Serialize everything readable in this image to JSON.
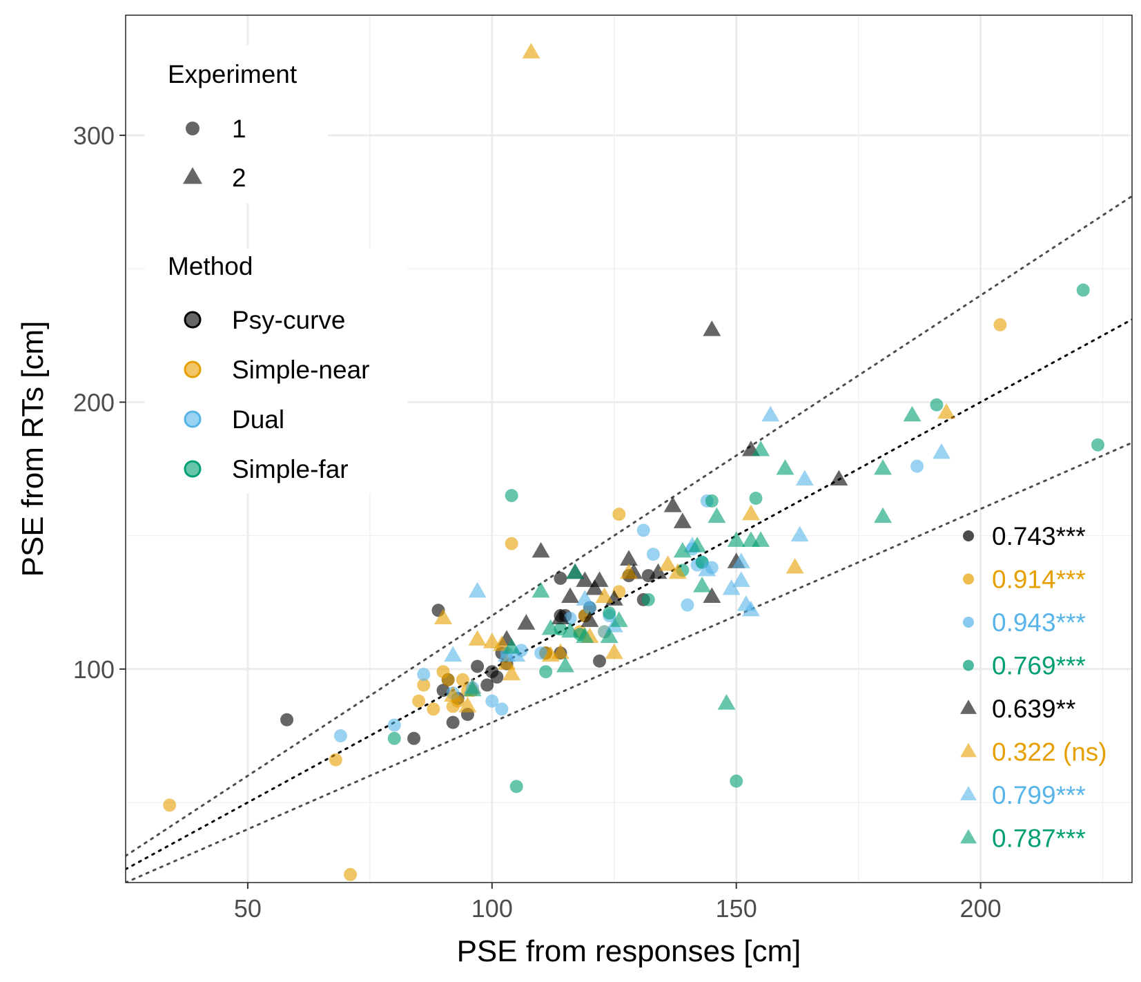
{
  "chart_data": {
    "type": "scatter",
    "xlabel": "PSE from responses [cm]",
    "ylabel": "PSE from RTs [cm]",
    "xlim": [
      25,
      231
    ],
    "ylim": [
      20,
      345
    ],
    "x_ticks": [
      50,
      100,
      150,
      200
    ],
    "y_ticks": [
      100,
      200,
      300
    ],
    "grid": true,
    "colors": {
      "Psy-curve": "#000000",
      "Simple-near": "#E69F00",
      "Dual": "#56B4E9",
      "Simple-far": "#009E73"
    },
    "legend_experiment": {
      "title": "Experiment",
      "items": [
        {
          "label": "1",
          "shape": "circle"
        },
        {
          "label": "2",
          "shape": "triangle"
        }
      ]
    },
    "legend_method": {
      "title": "Method",
      "items": [
        {
          "label": "Psy-curve",
          "method": "Psy-curve"
        },
        {
          "label": "Simple-near",
          "method": "Simple-near"
        },
        {
          "label": "Dual",
          "method": "Dual"
        },
        {
          "label": "Simple-far",
          "method": "Simple-far"
        }
      ]
    },
    "correlations": [
      {
        "experiment": "1",
        "method": "Psy-curve",
        "shape": "circle",
        "label": "0.743***"
      },
      {
        "experiment": "1",
        "method": "Simple-near",
        "shape": "circle",
        "label": "0.914***"
      },
      {
        "experiment": "1",
        "method": "Dual",
        "shape": "circle",
        "label": "0.943***"
      },
      {
        "experiment": "1",
        "method": "Simple-far",
        "shape": "circle",
        "label": "0.769***"
      },
      {
        "experiment": "2",
        "method": "Psy-curve",
        "shape": "triangle",
        "label": "0.639**"
      },
      {
        "experiment": "2",
        "method": "Simple-near",
        "shape": "triangle",
        "label": "0.322 (ns)"
      },
      {
        "experiment": "2",
        "method": "Dual",
        "shape": "triangle",
        "label": "0.799***"
      },
      {
        "experiment": "2",
        "method": "Simple-far",
        "shape": "triangle",
        "label": "0.787***"
      }
    ],
    "reference_lines": [
      {
        "slope": 1.0,
        "intercept": 0,
        "style": "dotted",
        "color": "#000000"
      },
      {
        "slope": 1.2,
        "intercept": 0,
        "style": "dotted",
        "color": "#4d4d4d"
      },
      {
        "slope": 0.8,
        "intercept": 0,
        "style": "dotted",
        "color": "#4d4d4d"
      }
    ],
    "series": [
      {
        "method": "Psy-curve",
        "experiment": "1",
        "shape": "circle",
        "points": [
          [
            58,
            81
          ],
          [
            84,
            74
          ],
          [
            89,
            122
          ],
          [
            90,
            92
          ],
          [
            91,
            96
          ],
          [
            92,
            80
          ],
          [
            93,
            89
          ],
          [
            95,
            83
          ],
          [
            97,
            101
          ],
          [
            99,
            94
          ],
          [
            100,
            99
          ],
          [
            101,
            97
          ],
          [
            102,
            106
          ],
          [
            103,
            102
          ],
          [
            111,
            106
          ],
          [
            114,
            106
          ],
          [
            114,
            120
          ],
          [
            115,
            120
          ],
          [
            114,
            134
          ],
          [
            119,
            120
          ],
          [
            120,
            123
          ],
          [
            122,
            103
          ],
          [
            128,
            135
          ],
          [
            131,
            126
          ],
          [
            132,
            135
          ]
        ]
      },
      {
        "method": "Simple-near",
        "experiment": "1",
        "shape": "circle",
        "points": [
          [
            34,
            49
          ],
          [
            68,
            66
          ],
          [
            71,
            23
          ],
          [
            85,
            88
          ],
          [
            86,
            94
          ],
          [
            88,
            85
          ],
          [
            90,
            99
          ],
          [
            91,
            96
          ],
          [
            92,
            86
          ],
          [
            93,
            88
          ],
          [
            94,
            96
          ],
          [
            95,
            92
          ],
          [
            96,
            92
          ],
          [
            104,
            147
          ],
          [
            111,
            106
          ],
          [
            118,
            114
          ],
          [
            119,
            120
          ],
          [
            123,
            114
          ],
          [
            126,
            129
          ],
          [
            126,
            158
          ],
          [
            204,
            229
          ]
        ]
      },
      {
        "method": "Dual",
        "experiment": "1",
        "shape": "circle",
        "points": [
          [
            69,
            75
          ],
          [
            80,
            79
          ],
          [
            86,
            98
          ],
          [
            92,
            91
          ],
          [
            96,
            93
          ],
          [
            100,
            88
          ],
          [
            102,
            85
          ],
          [
            103,
            106
          ],
          [
            106,
            107
          ],
          [
            110,
            106
          ],
          [
            116,
            119
          ],
          [
            120,
            123
          ],
          [
            123,
            114
          ],
          [
            124,
            120
          ],
          [
            131,
            152
          ],
          [
            133,
            143
          ],
          [
            140,
            124
          ],
          [
            141,
            145
          ],
          [
            142,
            139
          ],
          [
            143,
            140
          ],
          [
            144,
            163
          ],
          [
            145,
            138
          ],
          [
            187,
            176
          ]
        ]
      },
      {
        "method": "Simple-far",
        "experiment": "1",
        "shape": "circle",
        "points": [
          [
            80,
            74
          ],
          [
            104,
            165
          ],
          [
            105,
            56
          ],
          [
            111,
            99
          ],
          [
            114,
            115
          ],
          [
            118,
            113
          ],
          [
            124,
            121
          ],
          [
            132,
            126
          ],
          [
            139,
            137
          ],
          [
            143,
            140
          ],
          [
            145,
            163
          ],
          [
            150,
            58
          ],
          [
            154,
            164
          ],
          [
            191,
            199
          ],
          [
            221,
            242
          ],
          [
            224,
            184
          ]
        ]
      },
      {
        "method": "Psy-curve",
        "experiment": "2",
        "shape": "triangle",
        "points": [
          [
            103,
            111
          ],
          [
            107,
            117
          ],
          [
            110,
            144
          ],
          [
            114,
            119
          ],
          [
            116,
            127
          ],
          [
            117,
            136
          ],
          [
            119,
            133
          ],
          [
            120,
            118
          ],
          [
            121,
            130
          ],
          [
            122,
            133
          ],
          [
            125,
            126
          ],
          [
            128,
            141
          ],
          [
            129,
            136
          ],
          [
            134,
            136
          ],
          [
            137,
            161
          ],
          [
            139,
            155
          ],
          [
            145,
            127
          ],
          [
            145,
            227
          ],
          [
            150,
            140
          ],
          [
            153,
            182
          ],
          [
            171,
            171
          ]
        ]
      },
      {
        "method": "Simple-near",
        "experiment": "2",
        "shape": "triangle",
        "points": [
          [
            90,
            119
          ],
          [
            92,
            90
          ],
          [
            95,
            86
          ],
          [
            96,
            93
          ],
          [
            97,
            111
          ],
          [
            100,
            110
          ],
          [
            102,
            109
          ],
          [
            103,
            102
          ],
          [
            104,
            98
          ],
          [
            108,
            331
          ],
          [
            112,
            105
          ],
          [
            114,
            106
          ],
          [
            120,
            112
          ],
          [
            123,
            127
          ],
          [
            125,
            106
          ],
          [
            128,
            136
          ],
          [
            136,
            139
          ],
          [
            138,
            136
          ],
          [
            153,
            158
          ],
          [
            162,
            138
          ],
          [
            193,
            196
          ]
        ]
      },
      {
        "method": "Dual",
        "experiment": "2",
        "shape": "triangle",
        "points": [
          [
            96,
            93
          ],
          [
            92,
            105
          ],
          [
            97,
            129
          ],
          [
            103,
            105
          ],
          [
            105,
            105
          ],
          [
            119,
            126
          ],
          [
            125,
            116
          ],
          [
            141,
            146
          ],
          [
            144,
            137
          ],
          [
            149,
            130
          ],
          [
            151,
            140
          ],
          [
            151,
            133
          ],
          [
            152,
            124
          ],
          [
            153,
            122
          ],
          [
            157,
            195
          ],
          [
            163,
            150
          ],
          [
            164,
            171
          ],
          [
            192,
            181
          ]
        ]
      },
      {
        "method": "Simple-far",
        "experiment": "2",
        "shape": "triangle",
        "points": [
          [
            96,
            92
          ],
          [
            104,
            108
          ],
          [
            110,
            129
          ],
          [
            112,
            115
          ],
          [
            115,
            101
          ],
          [
            116,
            114
          ],
          [
            117,
            136
          ],
          [
            119,
            112
          ],
          [
            124,
            112
          ],
          [
            126,
            118
          ],
          [
            139,
            144
          ],
          [
            142,
            146
          ],
          [
            143,
            131
          ],
          [
            146,
            157
          ],
          [
            148,
            87
          ],
          [
            150,
            148
          ],
          [
            153,
            148
          ],
          [
            155,
            148
          ],
          [
            155,
            182
          ],
          [
            160,
            175
          ],
          [
            180,
            157
          ],
          [
            180,
            175
          ],
          [
            186,
            195
          ]
        ]
      }
    ]
  }
}
